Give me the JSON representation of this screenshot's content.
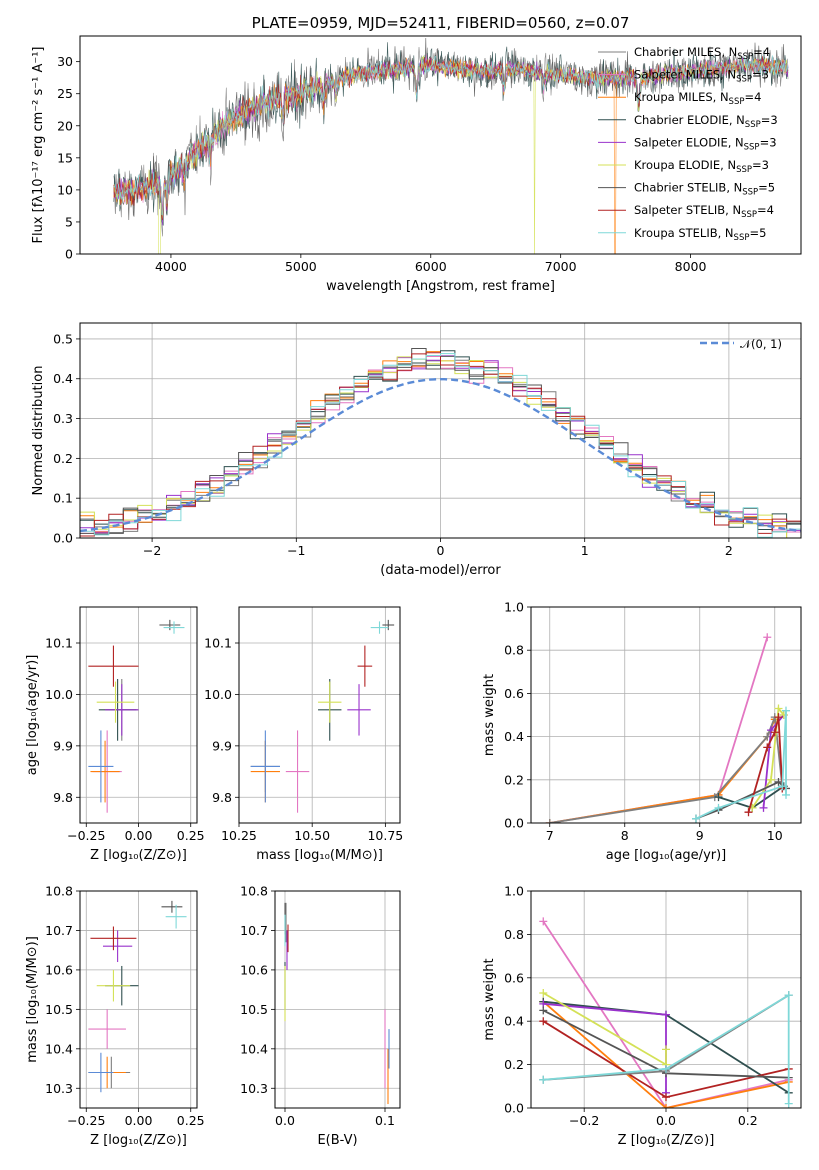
{
  "colors": {
    "chabrier_miles": "#7f7f7f",
    "salpeter_miles": "#e377c2",
    "kroupa_miles": "#ff7f0e",
    "chabrier_elodie": "#2f4f4f",
    "salpeter_elodie": "#9932cc",
    "kroupa_elodie": "#d4e157",
    "chabrier_stelib": "#555555",
    "salpeter_stelib": "#b22222",
    "kroupa_stelib": "#7fd8d8",
    "normal": "#5b8bd6"
  },
  "chart_data": [
    {
      "id": "spectrum",
      "type": "line",
      "title": "PLATE=0959, MJD=52411, FIBERID=0560, z=0.07",
      "xlabel": "wavelength [Angstrom, rest frame]",
      "ylabel": "Flux [fλ10⁻¹⁷ erg cm⁻² s⁻¹ A⁻¹]",
      "xlim": [
        3300,
        8850
      ],
      "ylim": [
        0,
        34
      ],
      "xticks": [
        4000,
        5000,
        6000,
        7000,
        8000
      ],
      "yticks": [
        0,
        5,
        10,
        15,
        20,
        25,
        30
      ],
      "grid": false,
      "legend": "upper-right",
      "continuum_x": [
        3560,
        3700,
        3900,
        4000,
        4200,
        4400,
        4600,
        4800,
        5000,
        5200,
        5400,
        5600,
        5800,
        6000,
        6200,
        6400,
        6600,
        6800,
        7000,
        7200,
        7400,
        7600,
        7800,
        8000,
        8200,
        8400,
        8600,
        8750
      ],
      "continuum_y": [
        9.5,
        10,
        11,
        12.5,
        16,
        20,
        22.5,
        24,
        25,
        26.5,
        28,
        28.5,
        29,
        29.5,
        29,
        28.5,
        29,
        28.5,
        28,
        27.5,
        27.5,
        27.5,
        28,
        28.5,
        29,
        29.5,
        29.5,
        29
      ],
      "series": [
        {
          "name": "Chabrier MILES, N",
          "sub": "SSP",
          "suffix": "=4",
          "color_key": "chabrier_miles"
        },
        {
          "name": "Salpeter MILES, N",
          "sub": "SSP",
          "suffix": "=3",
          "color_key": "salpeter_miles"
        },
        {
          "name": "Kroupa MILES, N",
          "sub": "SSP",
          "suffix": "=4",
          "color_key": "kroupa_miles"
        },
        {
          "name": "Chabrier ELODIE, N",
          "sub": "SSP",
          "suffix": "=3",
          "color_key": "chabrier_elodie"
        },
        {
          "name": "Salpeter ELODIE, N",
          "sub": "SSP",
          "suffix": "=3",
          "color_key": "salpeter_elodie"
        },
        {
          "name": "Kroupa ELODIE, N",
          "sub": "SSP",
          "suffix": "=3",
          "color_key": "kroupa_elodie"
        },
        {
          "name": "Chabrier STELIB, N",
          "sub": "SSP",
          "suffix": "=5",
          "color_key": "chabrier_stelib"
        },
        {
          "name": "Salpeter STELIB, N",
          "sub": "SSP",
          "suffix": "=4",
          "color_key": "salpeter_stelib"
        },
        {
          "name": "Kroupa STELIB, N",
          "sub": "SSP",
          "suffix": "=5",
          "color_key": "kroupa_stelib"
        }
      ]
    },
    {
      "id": "residuals",
      "type": "area",
      "xlabel": "(data-model)/error",
      "ylabel": "Normed distribution",
      "xlim": [
        -2.5,
        2.5
      ],
      "ylim": [
        0,
        0.54
      ],
      "xticks": [
        -2,
        -1,
        0,
        1,
        2
      ],
      "xticklabels": [
        "−2",
        "−1",
        "0",
        "1",
        "2"
      ],
      "yticks": [
        0,
        0.1,
        0.2,
        0.3,
        0.4,
        0.5
      ],
      "yticklabels": [
        "0.0",
        "0.1",
        "0.2",
        "0.3",
        "0.4",
        "0.5"
      ],
      "grid": true,
      "legend": "upper-right",
      "normal_label": "𝒩(0, 1)",
      "bin_width": 0.1
    },
    {
      "id": "age_vs_Z",
      "type": "scatter",
      "xlabel": "Z [log₁₀(Z/Z⊙)]",
      "ylabel": "age  [log₁₀(age/yr)]",
      "xlim": [
        -0.28,
        0.28
      ],
      "ylim": [
        9.75,
        10.17
      ],
      "xticks": [
        -0.25,
        0,
        0.25
      ],
      "xticklabels": [
        "−0.25",
        "0.00",
        "0.25"
      ],
      "yticks": [
        9.8,
        9.9,
        10.0,
        10.1
      ],
      "yticklabels": [
        "9.8",
        "9.9",
        "10.0",
        "10.1"
      ],
      "grid": true,
      "points": [
        {
          "key": "chabrier_miles",
          "x": -0.08,
          "y": 9.97,
          "ex": 0.08,
          "ey": 0.06
        },
        {
          "key": "salpeter_miles",
          "x": -0.15,
          "y": 9.85,
          "ex": 0.07,
          "ey": 0.08
        },
        {
          "key": "kroupa_miles",
          "x": -0.16,
          "y": 9.85,
          "ex": 0.07,
          "ey": 0.06
        },
        {
          "key": "chabrier_elodie",
          "x": -0.1,
          "y": 9.97,
          "ex": 0.09,
          "ey": 0.06
        },
        {
          "key": "salpeter_elodie",
          "x": -0.08,
          "y": 9.97,
          "ex": 0.08,
          "ey": 0.05
        },
        {
          "key": "kroupa_elodie",
          "x": -0.11,
          "y": 9.985,
          "ex": 0.09,
          "ey": 0.04
        },
        {
          "key": "chabrier_stelib",
          "x": 0.15,
          "y": 10.135,
          "ex": 0.05,
          "ey": 0.01
        },
        {
          "key": "salpeter_stelib",
          "x": -0.12,
          "y": 10.055,
          "ex": 0.12,
          "ey": 0.04
        },
        {
          "key": "kroupa_stelib",
          "x": 0.17,
          "y": 10.13,
          "ex": 0.05,
          "ey": 0.012
        },
        {
          "key": "normal",
          "x": -0.18,
          "y": 9.86,
          "ex": 0.06,
          "ey": 0.07
        }
      ]
    },
    {
      "id": "age_vs_mass",
      "type": "scatter",
      "xlabel": "mass [log₁₀(M/M⊙)]",
      "ylabel": "",
      "xlim": [
        10.25,
        10.8
      ],
      "ylim": [
        9.75,
        10.17
      ],
      "xticks": [
        10.25,
        10.5,
        10.75
      ],
      "xticklabels": [
        "10.25",
        "10.50",
        "10.75"
      ],
      "yticks": [
        9.8,
        9.9,
        10.0,
        10.1
      ],
      "yticklabels": [
        "9.8",
        "9.9",
        "10.0",
        "10.1"
      ],
      "grid": true,
      "points": [
        {
          "key": "chabrier_miles",
          "x": 10.34,
          "y": 9.86,
          "ex": 0.05,
          "ey": 0.05
        },
        {
          "key": "salpeter_miles",
          "x": 10.45,
          "y": 9.85,
          "ex": 0.04,
          "ey": 0.08
        },
        {
          "key": "kroupa_miles",
          "x": 10.34,
          "y": 9.85,
          "ex": 0.05,
          "ey": 0.06
        },
        {
          "key": "chabrier_elodie",
          "x": 10.56,
          "y": 9.97,
          "ex": 0.04,
          "ey": 0.06
        },
        {
          "key": "salpeter_elodie",
          "x": 10.66,
          "y": 9.97,
          "ex": 0.04,
          "ey": 0.05
        },
        {
          "key": "kroupa_elodie",
          "x": 10.56,
          "y": 9.985,
          "ex": 0.04,
          "ey": 0.04
        },
        {
          "key": "chabrier_stelib",
          "x": 10.76,
          "y": 10.135,
          "ex": 0.02,
          "ey": 0.01
        },
        {
          "key": "salpeter_stelib",
          "x": 10.68,
          "y": 10.055,
          "ex": 0.025,
          "ey": 0.04
        },
        {
          "key": "kroupa_stelib",
          "x": 10.73,
          "y": 10.13,
          "ex": 0.03,
          "ey": 0.012
        },
        {
          "key": "normal",
          "x": 10.34,
          "y": 9.86,
          "ex": 0.05,
          "ey": 0.07
        }
      ]
    },
    {
      "id": "weight_vs_age",
      "type": "line",
      "xlabel": "age  [log₁₀(age/yr)]",
      "ylabel": "mass weight",
      "xlim": [
        6.75,
        10.35
      ],
      "ylim": [
        0,
        1.0
      ],
      "xticks": [
        7,
        8,
        9,
        10
      ],
      "xticklabels": [
        "7",
        "8",
        "9",
        "10"
      ],
      "yticks": [
        0,
        0.2,
        0.4,
        0.6,
        0.8,
        1.0
      ],
      "yticklabels": [
        "0.0",
        "0.2",
        "0.4",
        "0.6",
        "0.8",
        "1.0"
      ],
      "grid": true,
      "series": [
        {
          "key": "salpeter_miles",
          "x": [
            7.0,
            9.25,
            9.9
          ],
          "y": [
            0.0,
            0.13,
            0.86
          ]
        },
        {
          "key": "kroupa_miles",
          "x": [
            7.0,
            9.25,
            9.9,
            10.0
          ],
          "y": [
            0.0,
            0.13,
            0.4,
            0.48
          ]
        },
        {
          "key": "chabrier_miles",
          "x": [
            7.0,
            9.2,
            9.9,
            10.0,
            10.1
          ],
          "y": [
            0.0,
            0.12,
            0.4,
            0.49,
            0.17
          ]
        },
        {
          "key": "chabrier_elodie",
          "x": [
            9.25,
            9.7,
            10.12
          ],
          "y": [
            0.12,
            0.07,
            0.17
          ]
        },
        {
          "key": "salpeter_elodie",
          "x": [
            9.85,
            9.95,
            10.12
          ],
          "y": [
            0.07,
            0.43,
            0.5
          ]
        },
        {
          "key": "kroupa_elodie",
          "x": [
            9.7,
            9.95,
            10.05,
            10.12
          ],
          "y": [
            0.07,
            0.2,
            0.53,
            0.5
          ]
        },
        {
          "key": "chabrier_stelib",
          "x": [
            8.95,
            9.25,
            10.05,
            10.15
          ],
          "y": [
            0.02,
            0.06,
            0.19,
            0.16
          ]
        },
        {
          "key": "salpeter_stelib",
          "x": [
            9.65,
            9.9,
            10.0,
            10.05,
            10.1
          ],
          "y": [
            0.05,
            0.35,
            0.42,
            0.49,
            0.16
          ]
        },
        {
          "key": "kroupa_stelib",
          "x": [
            8.95,
            9.25,
            10.1,
            10.15,
            10.15
          ],
          "y": [
            0.02,
            0.07,
            0.17,
            0.52,
            0.13
          ]
        }
      ]
    },
    {
      "id": "mass_vs_Z",
      "type": "scatter",
      "xlabel": "Z [log₁₀(Z/Z⊙)]",
      "ylabel": "mass [log₁₀(M/M⊙)]",
      "xlim": [
        -0.28,
        0.28
      ],
      "ylim": [
        10.25,
        10.8
      ],
      "xticks": [
        -0.25,
        0,
        0.25
      ],
      "xticklabels": [
        "−0.25",
        "0.00",
        "0.25"
      ],
      "yticks": [
        10.3,
        10.4,
        10.5,
        10.6,
        10.7,
        10.8
      ],
      "yticklabels": [
        "10.3",
        "10.4",
        "10.5",
        "10.6",
        "10.7",
        "10.8"
      ],
      "grid": true,
      "points": [
        {
          "key": "chabrier_miles",
          "x": -0.13,
          "y": 10.34,
          "ex": 0.09,
          "ey": 0.04
        },
        {
          "key": "salpeter_miles",
          "x": -0.15,
          "y": 10.45,
          "ex": 0.09,
          "ey": 0.05
        },
        {
          "key": "kroupa_miles",
          "x": -0.15,
          "y": 10.34,
          "ex": 0.09,
          "ey": 0.04
        },
        {
          "key": "chabrier_elodie",
          "x": -0.08,
          "y": 10.56,
          "ex": 0.08,
          "ey": 0.05
        },
        {
          "key": "salpeter_elodie",
          "x": -0.1,
          "y": 10.66,
          "ex": 0.07,
          "ey": 0.04
        },
        {
          "key": "kroupa_elodie",
          "x": -0.12,
          "y": 10.56,
          "ex": 0.08,
          "ey": 0.04
        },
        {
          "key": "chabrier_stelib",
          "x": 0.16,
          "y": 10.76,
          "ex": 0.05,
          "ey": 0.015
        },
        {
          "key": "salpeter_stelib",
          "x": -0.12,
          "y": 10.68,
          "ex": 0.11,
          "ey": 0.03
        },
        {
          "key": "kroupa_stelib",
          "x": 0.18,
          "y": 10.735,
          "ex": 0.05,
          "ey": 0.03
        },
        {
          "key": "normal",
          "x": -0.18,
          "y": 10.34,
          "ex": 0.06,
          "ey": 0.05
        }
      ]
    },
    {
      "id": "mass_vs_ebv",
      "type": "scatter",
      "xlabel": "E(B-V)",
      "ylabel": "",
      "xlim": [
        -0.01,
        0.115
      ],
      "ylim": [
        10.25,
        10.8
      ],
      "xticks": [
        0.0,
        0.1
      ],
      "xticklabels": [
        "0.0",
        "0.1"
      ],
      "yticks": [
        10.3,
        10.4,
        10.5,
        10.6,
        10.7,
        10.8
      ],
      "yticklabels": [
        "10.3",
        "10.4",
        "10.5",
        "10.6",
        "10.7",
        "10.8"
      ],
      "grid": true,
      "points": [
        {
          "key": "chabrier_miles",
          "x": 0.001,
          "y": 10.72,
          "ex": 0.0,
          "ey": 0.05
        },
        {
          "key": "salpeter_miles",
          "x": 0.1,
          "y": 10.4,
          "ex": 0.0,
          "ey": 0.1
        },
        {
          "key": "kroupa_miles",
          "x": 0.103,
          "y": 10.33,
          "ex": 0.0,
          "ey": 0.07
        },
        {
          "key": "chabrier_elodie",
          "x": 0.0,
          "y": 10.56,
          "ex": 0.0,
          "ey": 0.06
        },
        {
          "key": "salpeter_elodie",
          "x": 0.002,
          "y": 10.65,
          "ex": 0.0,
          "ey": 0.05
        },
        {
          "key": "kroupa_elodie",
          "x": 0.0,
          "y": 10.54,
          "ex": 0.0,
          "ey": 0.07
        },
        {
          "key": "chabrier_stelib",
          "x": 0.0,
          "y": 10.73,
          "ex": 0.0,
          "ey": 0.04
        },
        {
          "key": "salpeter_stelib",
          "x": 0.003,
          "y": 10.68,
          "ex": 0.0,
          "ey": 0.035
        },
        {
          "key": "kroupa_stelib",
          "x": 0.0,
          "y": 10.7,
          "ex": 0.0,
          "ey": 0.04
        },
        {
          "key": "normal",
          "x": 0.104,
          "y": 10.4,
          "ex": 0.0,
          "ey": 0.05
        }
      ]
    },
    {
      "id": "weight_vs_Z",
      "type": "line",
      "xlabel": "Z [log₁₀(Z/Z⊙)]",
      "ylabel": "mass weight",
      "xlim": [
        -0.33,
        0.33
      ],
      "ylim": [
        0,
        1.0
      ],
      "xticks": [
        -0.2,
        0,
        0.2
      ],
      "xticklabels": [
        "−0.2",
        "0.0",
        "0.2"
      ],
      "yticks": [
        0,
        0.2,
        0.4,
        0.6,
        0.8,
        1.0
      ],
      "yticklabels": [
        "0.0",
        "0.2",
        "0.4",
        "0.6",
        "0.8",
        "1.0"
      ],
      "grid": true,
      "series": [
        {
          "key": "salpeter_miles",
          "x": [
            -0.3,
            0.0,
            0.3
          ],
          "y": [
            0.86,
            0.0,
            0.13
          ]
        },
        {
          "key": "kroupa_miles",
          "x": [
            -0.3,
            0.0,
            0.3
          ],
          "y": [
            0.49,
            0.0,
            0.12
          ]
        },
        {
          "key": "chabrier_elodie",
          "x": [
            -0.3,
            0.0,
            0.3
          ],
          "y": [
            0.49,
            0.43,
            0.07
          ]
        },
        {
          "key": "salpeter_elodie",
          "x": [
            -0.3,
            0.0,
            0.0
          ],
          "y": [
            0.48,
            0.43,
            0.07
          ]
        },
        {
          "key": "kroupa_elodie",
          "x": [
            -0.3,
            0.0,
            0.0
          ],
          "y": [
            0.53,
            0.2,
            0.27
          ]
        },
        {
          "key": "salpeter_stelib",
          "x": [
            -0.3,
            0.0,
            0.3
          ],
          "y": [
            0.4,
            0.05,
            0.18
          ]
        },
        {
          "key": "chabrier_stelib",
          "x": [
            -0.3,
            0.0,
            0.3
          ],
          "y": [
            0.45,
            0.16,
            0.14
          ]
        },
        {
          "key": "chabrier_miles",
          "x": [
            -0.3,
            0.0,
            0.3
          ],
          "y": [
            0.13,
            0.17,
            0.52
          ]
        },
        {
          "key": "kroupa_stelib",
          "x": [
            -0.3,
            0.0,
            0.3,
            0.3
          ],
          "y": [
            0.13,
            0.18,
            0.52,
            0.02
          ]
        }
      ]
    }
  ]
}
